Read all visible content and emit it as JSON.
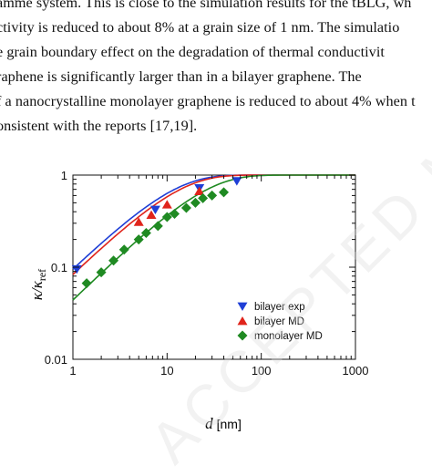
{
  "document": {
    "lines": [
      "amme system. This is close to the simulation results for the tBLG, wh",
      "ctivity is reduced to about 8% at a grain size of 1 nm. The simulatio",
      "e grain boundary effect on the degradation of thermal conductivit",
      "raphene is significantly larger than in a bilayer graphene. The",
      "f a nanocrystalline monolayer graphene is reduced to about 4% when t",
      "onsistent with the reports [17,19]."
    ]
  },
  "watermark": {
    "text": "ACCEPTED MANUSCRIPT"
  },
  "figure": {
    "chart_data": {
      "type": "scatter",
      "x_scale": "log",
      "y_scale": "log",
      "xlim": [
        1,
        1000
      ],
      "ylim": [
        0.01,
        1
      ],
      "xlabel_main": "d",
      "xlabel_unit": "[nm]",
      "ylabel_main": "κ/κ",
      "ylabel_sub": "ref",
      "x_tick_labels": [
        "1",
        "10",
        "100",
        "1000"
      ],
      "y_tick_labels": [
        "0.01",
        "0.1",
        "1"
      ],
      "legend_position": "bottom-right",
      "series": [
        {
          "name": "bilayer exp",
          "marker": "triangle-down",
          "color": "#1f3fd6",
          "x": [
            1.1,
            7.5,
            22,
            55
          ],
          "y": [
            0.095,
            0.42,
            0.72,
            0.86
          ]
        },
        {
          "name": "bilayer MD",
          "marker": "triangle-up",
          "color": "#e0241b",
          "x": [
            5,
            6.8,
            10,
            22
          ],
          "y": [
            0.31,
            0.37,
            0.48,
            0.67
          ]
        },
        {
          "name": "monolayer MD",
          "marker": "diamond",
          "color": "#1f8a22",
          "x": [
            1.4,
            2,
            2.7,
            3.5,
            5,
            6,
            8,
            10,
            12,
            16,
            20,
            24,
            30,
            40
          ],
          "y": [
            0.067,
            0.088,
            0.118,
            0.155,
            0.2,
            0.235,
            0.28,
            0.35,
            0.38,
            0.44,
            0.5,
            0.56,
            0.6,
            0.65
          ]
        }
      ],
      "fit_curves": [
        {
          "color": "#1f3fd6",
          "k": 0.1
        },
        {
          "color": "#e0241b",
          "k": 0.087
        },
        {
          "color": "#1f8a22",
          "k": 0.045
        }
      ]
    }
  }
}
